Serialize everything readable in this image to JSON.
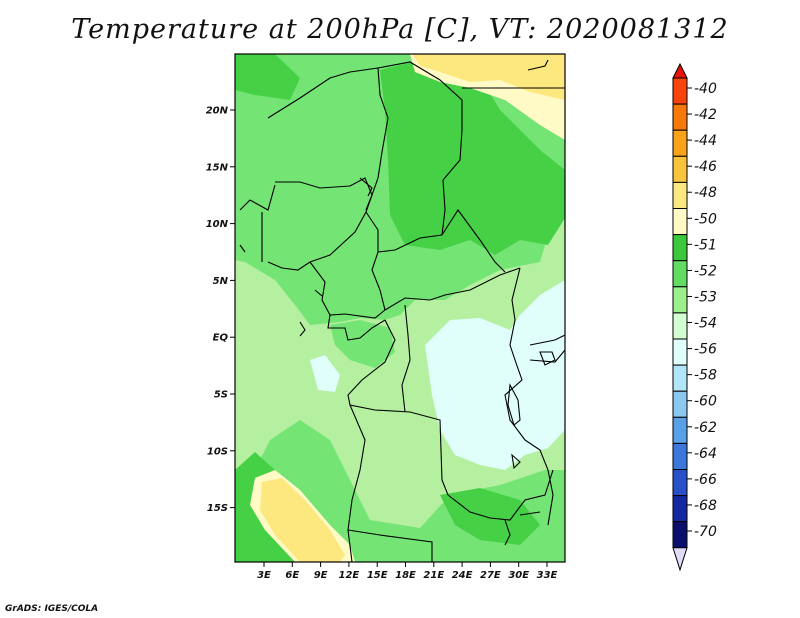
{
  "title": "Temperature at 200hPa [C], VT: 2020081312",
  "credit": "GrADS: IGES/COLA",
  "map": {
    "lat_labels": [
      "20N",
      "15N",
      "10N",
      "5N",
      "EQ",
      "5S",
      "10S",
      "15S"
    ],
    "lon_labels": [
      "3E",
      "6E",
      "9E",
      "12E",
      "15E",
      "18E",
      "21E",
      "24E",
      "27E",
      "30E",
      "33E"
    ]
  },
  "colorbar": {
    "labels": [
      "-40",
      "-42",
      "-44",
      "-46",
      "-48",
      "-50",
      "-51",
      "-52",
      "-53",
      "-54",
      "-56",
      "-58",
      "-60",
      "-62",
      "-64",
      "-66",
      "-68",
      "-70"
    ],
    "colors": [
      "#e8110b",
      "#f8430a",
      "#f8780a",
      "#f8a31a",
      "#f8c43c",
      "#fde880",
      "#fffac6",
      "#3cc83c",
      "#64dc64",
      "#9cf08c",
      "#d2ffd0",
      "#e0fffa",
      "#b4e6fa",
      "#8cc8f0",
      "#5aa0e6",
      "#3c78dc",
      "#2850c8",
      "#1428a0",
      "#0a0f6e",
      "#e0dcf8"
    ]
  },
  "field_colors": {
    "base": "#b4f0a0",
    "mid": "#74e474",
    "dark": "#46d046",
    "orange": "#fde880",
    "pale": "#fffac6",
    "cyan": "#e0fffa"
  }
}
